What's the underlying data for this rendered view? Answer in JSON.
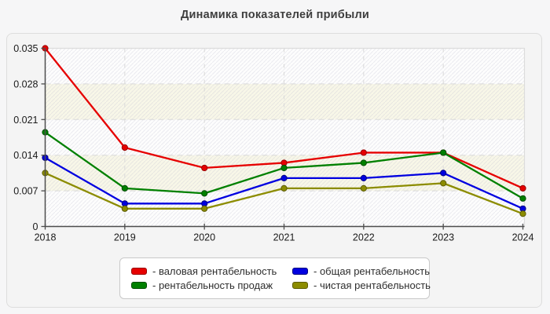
{
  "title": "Динамика показателей прибыли",
  "chart_data": {
    "type": "line",
    "title": "Динамика показателей прибыли",
    "x": [
      "2018",
      "2019",
      "2020",
      "2021",
      "2022",
      "2023",
      "2024"
    ],
    "y_ticks": [
      "0",
      "0.007",
      "0.014",
      "0.021",
      "0.028",
      "0.035"
    ],
    "y_tick_values": [
      0,
      0.007,
      0.014,
      0.021,
      0.028,
      0.035
    ],
    "ylim": [
      0,
      0.035
    ],
    "grid": true,
    "legend_position": "bottom-center",
    "series": [
      {
        "key": "gross-profitability",
        "label": "- валовая рентабельность",
        "color": "#e60000",
        "edge": "#990000",
        "values": [
          0.035,
          0.0155,
          0.0115,
          0.0125,
          0.0145,
          0.0145,
          0.0075
        ]
      },
      {
        "key": "sales-profitability",
        "label": "- рентабельность продаж",
        "color": "#008000",
        "edge": "#004d00",
        "values": [
          0.0185,
          0.0075,
          0.0065,
          0.0115,
          0.0125,
          0.0145,
          0.0055
        ]
      },
      {
        "key": "overall-profitability",
        "label": "- общая рентабельность",
        "color": "#0000e0",
        "edge": "#000080",
        "values": [
          0.0135,
          0.0045,
          0.0045,
          0.0095,
          0.0095,
          0.0105,
          0.0035
        ]
      },
      {
        "key": "net-profitability",
        "label": "- чистая рентабельность",
        "color": "#8c8c00",
        "edge": "#5c5c00",
        "values": [
          0.0105,
          0.0035,
          0.0035,
          0.0075,
          0.0075,
          0.0085,
          0.0025
        ]
      }
    ]
  },
  "colors": {
    "band_white": "#fdfdfd",
    "band_cream": "#f8f7e8",
    "hatch": "#b9b9cc",
    "grid": "#d9d9d9",
    "plot_border": "#dcdcdc",
    "axis": "#4d4d4d",
    "tick_text": "#1a1a1a",
    "title_text": "#3e3e3e"
  }
}
